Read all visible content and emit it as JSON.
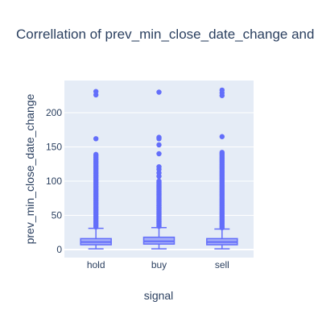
{
  "chart_data": {
    "type": "box",
    "title": "Correllation of prev_min_close_date_change and",
    "xlabel": "signal",
    "ylabel": "prev_min_close_date_change",
    "categories": [
      "hold",
      "buy",
      "sell"
    ],
    "ylim": [
      -5,
      242
    ],
    "yticks": [
      0,
      50,
      100,
      150,
      200
    ],
    "grid": true,
    "colors": {
      "box": "#636efa",
      "plot_bg": "#e5ecf6",
      "grid": "#ffffff",
      "text": "#2a3f5f"
    },
    "boxes": [
      {
        "name": "hold",
        "min": 1,
        "q1": 7,
        "median": 11,
        "q3": 16,
        "max": 31,
        "outliers": [
          33,
          35,
          37,
          39,
          41,
          43,
          45,
          47,
          49,
          51,
          53,
          55,
          57,
          59,
          61,
          63,
          65,
          67,
          69,
          71,
          73,
          75,
          77,
          79,
          81,
          83,
          85,
          87,
          89,
          91,
          93,
          95,
          97,
          99,
          101,
          103,
          105,
          107,
          109,
          111,
          113,
          115,
          117,
          119,
          121,
          123,
          125,
          127,
          129,
          131,
          133,
          135,
          137,
          139,
          162,
          226,
          231
        ]
      },
      {
        "name": "buy",
        "min": 1,
        "q1": 8,
        "median": 12,
        "q3": 18,
        "max": 32,
        "outliers": [
          34,
          36,
          38,
          40,
          42,
          44,
          46,
          48,
          50,
          52,
          54,
          56,
          58,
          60,
          62,
          64,
          66,
          68,
          70,
          72,
          74,
          76,
          78,
          80,
          82,
          84,
          86,
          88,
          90,
          92,
          94,
          96,
          98,
          100,
          107,
          112,
          117,
          121,
          140,
          153,
          162,
          164,
          230
        ]
      },
      {
        "name": "sell",
        "min": 1,
        "q1": 7,
        "median": 11,
        "q3": 16,
        "max": 30,
        "outliers": [
          32,
          34,
          36,
          38,
          40,
          42,
          44,
          46,
          48,
          50,
          52,
          54,
          56,
          58,
          60,
          62,
          64,
          66,
          68,
          70,
          72,
          74,
          76,
          78,
          80,
          82,
          84,
          86,
          88,
          90,
          92,
          94,
          96,
          98,
          100,
          102,
          104,
          106,
          108,
          110,
          112,
          114,
          116,
          118,
          120,
          122,
          124,
          126,
          128,
          130,
          132,
          134,
          136,
          138,
          140,
          142,
          165,
          225,
          229,
          233
        ]
      }
    ]
  }
}
